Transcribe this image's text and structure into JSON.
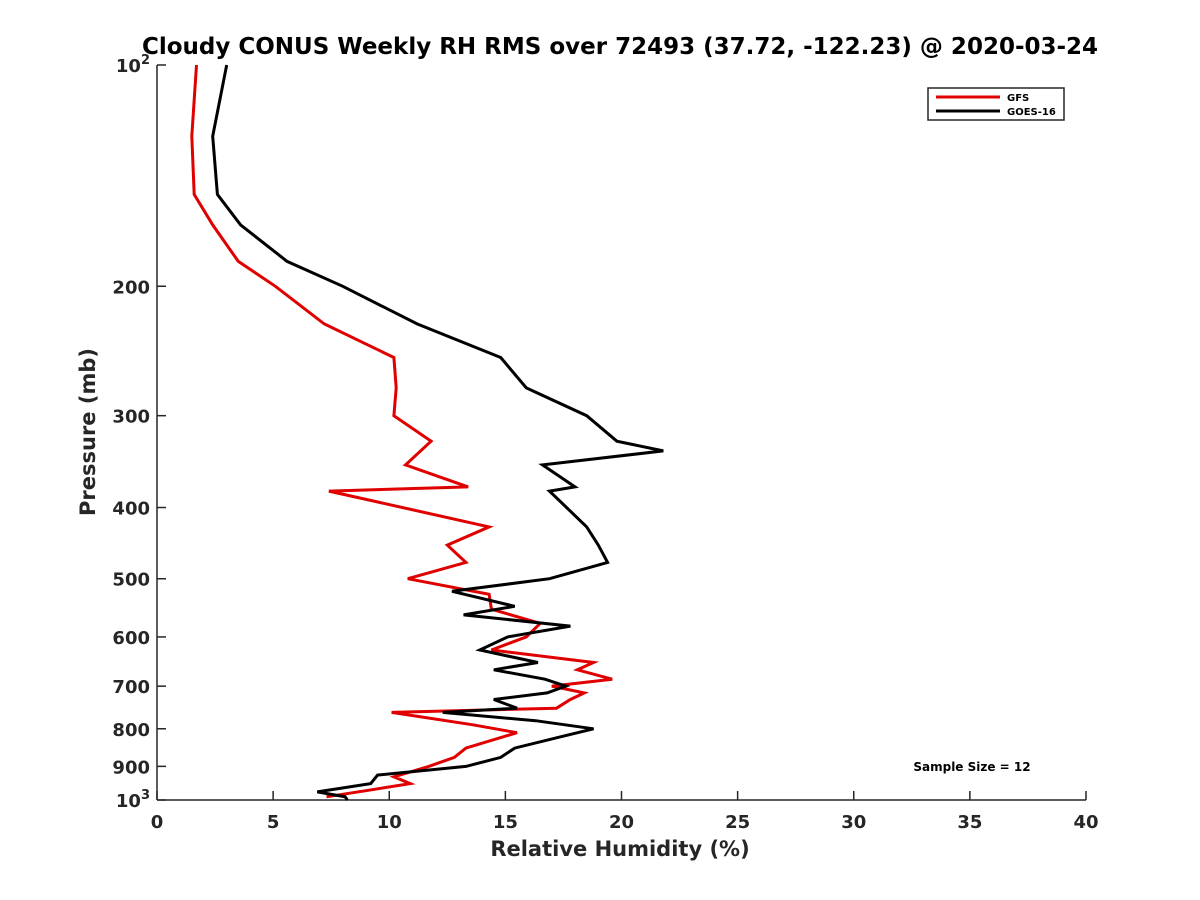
{
  "chart_data": {
    "type": "line",
    "title": "Cloudy CONUS Weekly RH RMS over 72493 (37.72, -122.23) @ 2020-03-24",
    "xlabel": "Relative Humidity (%)",
    "ylabel": "Pressure (mb)",
    "xlim": [
      0,
      40
    ],
    "ylim": [
      100,
      1000
    ],
    "y_scale": "log",
    "y_reversed": true,
    "grid": false,
    "legend_position": "top-right",
    "x_ticks": [
      "0",
      "5",
      "10",
      "15",
      "20",
      "25",
      "30",
      "35",
      "40"
    ],
    "y_ticks": [
      {
        "value": 100,
        "base": "10",
        "exp": "2"
      },
      {
        "value": 200,
        "label": "200"
      },
      {
        "value": 300,
        "label": "300"
      },
      {
        "value": 400,
        "label": "400"
      },
      {
        "value": 500,
        "label": "500"
      },
      {
        "value": 600,
        "label": "600"
      },
      {
        "value": 700,
        "label": "700"
      },
      {
        "value": 800,
        "label": "800"
      },
      {
        "value": 900,
        "label": "900"
      },
      {
        "value": 1000,
        "base": "10",
        "exp": "3"
      }
    ],
    "annotation": "Sample Size = 12",
    "series": [
      {
        "name": "GFS",
        "color": "#e00000",
        "points": [
          [
            1.7,
            100
          ],
          [
            1.5,
            125
          ],
          [
            1.6,
            150
          ],
          [
            2.4,
            165
          ],
          [
            3.5,
            185
          ],
          [
            5.1,
            200
          ],
          [
            7.2,
            225
          ],
          [
            10.2,
            250
          ],
          [
            10.3,
            275
          ],
          [
            10.2,
            300
          ],
          [
            11.8,
            325
          ],
          [
            10.7,
            350
          ],
          [
            13.4,
            375
          ],
          [
            7.4,
            380
          ],
          [
            14.3,
            425
          ],
          [
            12.5,
            450
          ],
          [
            13.3,
            475
          ],
          [
            10.8,
            500
          ],
          [
            14.3,
            525
          ],
          [
            14.4,
            550
          ],
          [
            16.5,
            575
          ],
          [
            15.9,
            600
          ],
          [
            14.4,
            625
          ],
          [
            18.8,
            650
          ],
          [
            18.1,
            665
          ],
          [
            19.6,
            685
          ],
          [
            17.0,
            700
          ],
          [
            18.4,
            715
          ],
          [
            17.8,
            730
          ],
          [
            17.2,
            750
          ],
          [
            10.1,
            760
          ],
          [
            13.6,
            790
          ],
          [
            15.5,
            810
          ],
          [
            13.3,
            850
          ],
          [
            12.8,
            875
          ],
          [
            11.7,
            900
          ],
          [
            10.2,
            930
          ],
          [
            10.9,
            950
          ],
          [
            9.1,
            970
          ],
          [
            7.3,
            990
          ]
        ]
      },
      {
        "name": "GOES-16",
        "color": "#000000",
        "points": [
          [
            3.0,
            100
          ],
          [
            2.4,
            125
          ],
          [
            2.6,
            150
          ],
          [
            3.6,
            165
          ],
          [
            5.6,
            185
          ],
          [
            8.0,
            200
          ],
          [
            11.2,
            225
          ],
          [
            14.8,
            250
          ],
          [
            15.9,
            275
          ],
          [
            18.5,
            300
          ],
          [
            19.8,
            325
          ],
          [
            21.8,
            335
          ],
          [
            16.6,
            350
          ],
          [
            18.0,
            375
          ],
          [
            16.9,
            380
          ],
          [
            18.5,
            425
          ],
          [
            19.0,
            450
          ],
          [
            19.4,
            475
          ],
          [
            16.9,
            500
          ],
          [
            12.7,
            520
          ],
          [
            15.4,
            545
          ],
          [
            13.2,
            560
          ],
          [
            17.8,
            580
          ],
          [
            15.1,
            600
          ],
          [
            13.9,
            625
          ],
          [
            16.4,
            650
          ],
          [
            14.5,
            665
          ],
          [
            16.7,
            685
          ],
          [
            17.6,
            700
          ],
          [
            16.8,
            715
          ],
          [
            14.5,
            730
          ],
          [
            15.5,
            750
          ],
          [
            12.3,
            760
          ],
          [
            16.3,
            780
          ],
          [
            18.8,
            800
          ],
          [
            17.4,
            820
          ],
          [
            15.4,
            850
          ],
          [
            14.8,
            875
          ],
          [
            13.3,
            900
          ],
          [
            9.5,
            925
          ],
          [
            9.2,
            950
          ],
          [
            6.9,
            975
          ],
          [
            8.1,
            990
          ],
          [
            8.2,
            1000
          ]
        ]
      }
    ]
  }
}
